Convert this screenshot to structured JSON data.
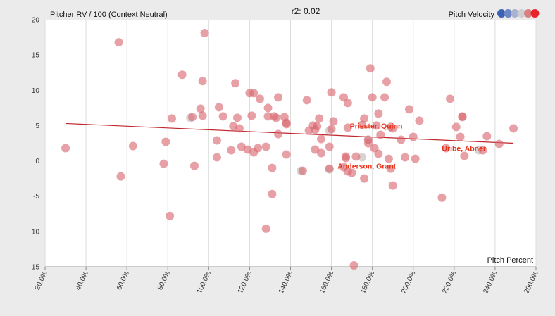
{
  "chart_data": {
    "type": "scatter",
    "title": "r2: 0.02",
    "ylabel": "Pitcher RV / 100 (Context Neutral)",
    "xlabel": "Pitch Percent",
    "color_legend": "Pitch Velocity",
    "legend_colors": [
      "#3a63b8",
      "#6d86c4",
      "#a7b3cf",
      "#cfcfd3",
      "#d9807f",
      "#e8232e"
    ],
    "xlim": [
      20,
      260
    ],
    "ylim": [
      -15,
      20
    ],
    "x_ticks": [
      "20.0%",
      "40.0%",
      "60.0%",
      "80.0%",
      "100.0%",
      "120.0%",
      "140.0%",
      "160.0%",
      "180.0%",
      "200.0%",
      "220.0%",
      "240.0%",
      "260.0%"
    ],
    "x_tick_values": [
      20,
      40,
      60,
      80,
      100,
      120,
      140,
      160,
      180,
      200,
      220,
      240,
      260
    ],
    "y_ticks": [
      "20",
      "15",
      "10",
      "5",
      "0",
      "-5",
      "-10",
      "-15"
    ],
    "y_tick_values": [
      20,
      15,
      10,
      5,
      0,
      -5,
      -10,
      -15
    ],
    "trendline": {
      "x": [
        30,
        249
      ],
      "y": [
        5.3,
        2.5
      ],
      "color": "#c0262d"
    },
    "point_color": "#d9686f",
    "light_point_color": "#d3c9c9",
    "points": [
      [
        30,
        1.8
      ],
      [
        56,
        16.8
      ],
      [
        57,
        -2.2
      ],
      [
        63,
        2.1
      ],
      [
        78,
        -0.4
      ],
      [
        79,
        2.7
      ],
      [
        81,
        -7.8
      ],
      [
        82,
        6.0
      ],
      [
        87,
        12.2
      ],
      [
        92,
        6.2
      ],
      [
        93,
        -0.7
      ],
      [
        96,
        7.4
      ],
      [
        97,
        6.4
      ],
      [
        97,
        11.3
      ],
      [
        98,
        18.1
      ],
      [
        104,
        2.9
      ],
      [
        104,
        0.5
      ],
      [
        105,
        7.6
      ],
      [
        107,
        6.3
      ],
      [
        111,
        1.5
      ],
      [
        112,
        4.9
      ],
      [
        113,
        11.0
      ],
      [
        114,
        6.1
      ],
      [
        115,
        4.6
      ],
      [
        116,
        2.0
      ],
      [
        119,
        1.6
      ],
      [
        120,
        9.6
      ],
      [
        121,
        6.4
      ],
      [
        122,
        1.2
      ],
      [
        122,
        9.6
      ],
      [
        124,
        1.8
      ],
      [
        125,
        8.8
      ],
      [
        128,
        2.0
      ],
      [
        128,
        -9.6
      ],
      [
        129,
        7.5
      ],
      [
        129,
        6.3
      ],
      [
        131,
        -1.0
      ],
      [
        131,
        -4.7
      ],
      [
        132,
        6.3
      ],
      [
        133,
        6.1
      ],
      [
        134,
        3.8
      ],
      [
        134,
        9.0
      ],
      [
        137,
        6.2
      ],
      [
        138,
        5.4
      ],
      [
        138,
        5.2
      ],
      [
        138,
        0.9
      ],
      [
        146,
        -1.4
      ],
      [
        148,
        8.6
      ],
      [
        149,
        4.3
      ],
      [
        151,
        5.0
      ],
      [
        152,
        4.4
      ],
      [
        152,
        1.6
      ],
      [
        153,
        4.9
      ],
      [
        154,
        6.0
      ],
      [
        155,
        1.1
      ],
      [
        155,
        3.1
      ],
      [
        159,
        -1.1
      ],
      [
        159,
        2.0
      ],
      [
        160,
        9.7
      ],
      [
        160,
        4.5
      ],
      [
        161,
        5.6
      ],
      [
        166,
        9.0
      ],
      [
        166,
        -0.9
      ],
      [
        167,
        0.6
      ],
      [
        167,
        0.4
      ],
      [
        168,
        -1.5
      ],
      [
        168,
        8.2
      ],
      [
        168,
        4.7
      ],
      [
        170,
        -1.7
      ],
      [
        171,
        -14.8
      ],
      [
        172,
        0.6
      ],
      [
        175,
        5.1
      ],
      [
        176,
        -2.5
      ],
      [
        176,
        6.0
      ],
      [
        178,
        3.0
      ],
      [
        178,
        2.5
      ],
      [
        179,
        13.1
      ],
      [
        180,
        9.0
      ],
      [
        181,
        1.8
      ],
      [
        182,
        5.0
      ],
      [
        183,
        1.0
      ],
      [
        183,
        6.7
      ],
      [
        184,
        3.7
      ],
      [
        186,
        9.0
      ],
      [
        187,
        11.2
      ],
      [
        188,
        0.3
      ],
      [
        189,
        4.8
      ],
      [
        189,
        -1.1
      ],
      [
        190,
        4.6
      ],
      [
        190,
        -3.5
      ],
      [
        194,
        3.0
      ],
      [
        196,
        0.5
      ],
      [
        198,
        7.3
      ],
      [
        200,
        3.4
      ],
      [
        201,
        0.3
      ],
      [
        203,
        5.7
      ],
      [
        214,
        -5.2
      ],
      [
        216,
        1.8
      ],
      [
        218,
        8.8
      ],
      [
        221,
        4.8
      ],
      [
        223,
        3.4
      ],
      [
        224,
        6.3
      ],
      [
        224,
        6.2
      ],
      [
        225,
        0.7
      ],
      [
        234,
        1.5
      ],
      [
        236,
        3.5
      ],
      [
        242,
        2.4
      ],
      [
        249,
        4.6
      ]
    ],
    "light_points": [
      [
        145,
        -1.4
      ],
      [
        159,
        -1.2
      ],
      [
        159,
        4.3
      ],
      [
        175,
        0.5
      ],
      [
        178,
        3.0
      ],
      [
        232,
        1.5
      ],
      [
        91,
        6.1
      ]
    ],
    "annotations": [
      {
        "text": "Priester, Quinn",
        "x": 169,
        "y": 4.6
      },
      {
        "text": "Anderson, Grant",
        "x": 163,
        "y": -1.1
      },
      {
        "text": "Uribe, Abner",
        "x": 214,
        "y": 1.4
      }
    ]
  }
}
